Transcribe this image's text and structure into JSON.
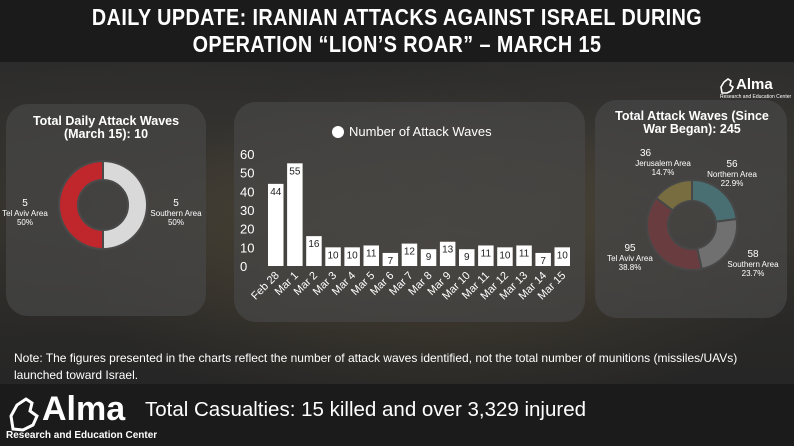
{
  "title": "DAILY UPDATE: IRANIAN ATTACKS AGAINST ISRAEL DURING OPERATION “LION’S ROAR” – MARCH 15",
  "colors": {
    "red": "#c0272d",
    "gray": "#d9d9d9",
    "yellow": "#f5d033",
    "cyan": "#4fd6e2",
    "bar": "#ffffff"
  },
  "left_panel": {
    "title": "Total Daily Attack Waves (March 15): 10",
    "slices": [
      {
        "name": "Tel Aviv Area",
        "value": "5",
        "pct": "50%"
      },
      {
        "name": "Southern Area",
        "value": "5",
        "pct": "50%"
      }
    ]
  },
  "right_panel": {
    "title": "Total Attack Waves (Since War Began): 245",
    "slices": [
      {
        "name": "Jerusalem Area",
        "value": "36",
        "pct": "14.7%"
      },
      {
        "name": "Northern Area",
        "value": "56",
        "pct": "22.9%"
      },
      {
        "name": "Southern Area",
        "value": "58",
        "pct": "23.7%"
      },
      {
        "name": "Tel Aviv Area",
        "value": "95",
        "pct": "38.8%"
      }
    ]
  },
  "chart_data": [
    {
      "type": "bar",
      "legend": "Number of Attack Waves",
      "categories": [
        "Feb 28",
        "Mar 1",
        "Mar 2",
        "Mar 3",
        "Mar 4",
        "Mar 5",
        "Mar 6",
        "Mar 7",
        "Mar 8",
        "Mar 9",
        "Mar 10",
        "Mar 11",
        "Mar 12",
        "Mar 13",
        "Mar 14",
        "Mar 15"
      ],
      "values": [
        44,
        55,
        16,
        10,
        10,
        11,
        7,
        12,
        9,
        13,
        9,
        11,
        10,
        11,
        7,
        10
      ],
      "ylim": [
        0,
        60
      ],
      "yticks": [
        "0",
        "10",
        "20",
        "30",
        "40",
        "50",
        "60"
      ],
      "grid": false
    },
    {
      "type": "pie",
      "title": "Total Daily Attack Waves (March 15): 10",
      "categories": [
        "Tel Aviv Area",
        "Southern Area"
      ],
      "values": [
        5,
        5
      ]
    },
    {
      "type": "pie",
      "title": "Total Attack Waves (Since War Began): 245",
      "categories": [
        "Northern Area",
        "Southern Area",
        "Tel Aviv Area",
        "Jerusalem Area"
      ],
      "values": [
        56,
        58,
        95,
        36
      ]
    }
  ],
  "note": "Note: The figures presented in the charts reflect the number of attack waves identified, not the total number of munitions (missiles/UAVs) launched toward Israel.",
  "casualties": "Total Casualties: 15 killed and over 3,329 injured",
  "logo": {
    "name": "Alma",
    "tagline": "Research and Education Center"
  }
}
